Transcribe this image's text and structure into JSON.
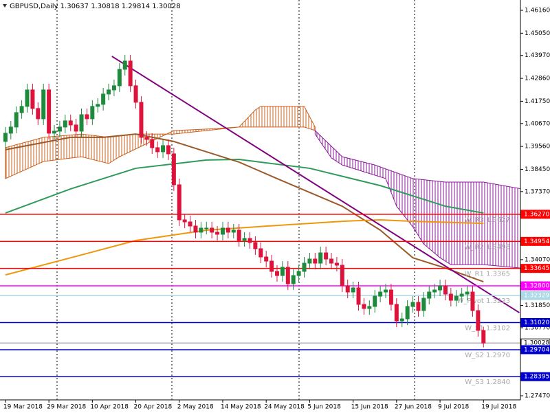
{
  "chart_data": {
    "type": "candlestick",
    "title": "GBPUSD,Daily  1.30637 1.30818 1.29814 1.30028",
    "xlim": [
      -1,
      94.8
    ],
    "ylim": [
      1.2727,
      1.4666
    ],
    "xticks": [
      {
        "value": 0,
        "label": "19 Mar 2018"
      },
      {
        "value": 8,
        "label": "29 Mar 2018"
      },
      {
        "value": 16,
        "label": "10 Apr 2018"
      },
      {
        "value": 24,
        "label": "20 Apr 2018"
      },
      {
        "value": 32,
        "label": "2 May 2018"
      },
      {
        "value": 40,
        "label": "14 May 2018"
      },
      {
        "value": 48,
        "label": "24 May 2018"
      },
      {
        "value": 56,
        "label": "5 Jun 2018"
      },
      {
        "value": 64,
        "label": "15 Jun 2018"
      },
      {
        "value": 72,
        "label": "27 Jun 2018"
      },
      {
        "value": 80,
        "label": "9 Jul 2018"
      },
      {
        "value": 88,
        "label": "19 Jul 2018"
      }
    ],
    "yticks": [
      {
        "value": 1.4616,
        "label": "1.46160"
      },
      {
        "value": 1.4505,
        "label": "1.45050"
      },
      {
        "value": 1.4397,
        "label": "1.43970"
      },
      {
        "value": 1.4286,
        "label": "1.42860"
      },
      {
        "value": 1.4175,
        "label": "1.41750"
      },
      {
        "value": 1.4067,
        "label": "1.40670"
      },
      {
        "value": 1.3956,
        "label": "1.39560"
      },
      {
        "value": 1.3845,
        "label": "1.38450"
      },
      {
        "value": 1.3737,
        "label": "1.37370"
      },
      {
        "value": 1.3407,
        "label": "1.34070"
      },
      {
        "value": 1.3185,
        "label": "1.31850"
      },
      {
        "value": 1.3077,
        "label": "1.30770"
      },
      {
        "value": 1.2747,
        "label": "1.27470"
      }
    ],
    "bull_color": "#1e8a3c",
    "bear_color": "#dc143c",
    "open": [
      1.398,
      1.402,
      1.405,
      1.412,
      1.415,
      1.423,
      1.414,
      1.409,
      1.423,
      1.402,
      1.403,
      1.405,
      1.408,
      1.406,
      1.403,
      1.411,
      1.409,
      1.415,
      1.416,
      1.421,
      1.423,
      1.425,
      1.433,
      1.437,
      1.425,
      1.417,
      1.4,
      1.399,
      1.395,
      1.393,
      1.396,
      1.392,
      1.377,
      1.36,
      1.359,
      1.357,
      1.354,
      1.356,
      1.356,
      1.354,
      1.353,
      1.356,
      1.354,
      1.355,
      1.35,
      1.351,
      1.349,
      1.346,
      1.342,
      1.34,
      1.335,
      1.333,
      1.337,
      1.329,
      1.333,
      1.335,
      1.339,
      1.341,
      1.339,
      1.344,
      1.341,
      1.339,
      1.338,
      1.328,
      1.325,
      1.327,
      1.319,
      1.317,
      1.318,
      1.323,
      1.325,
      1.326,
      1.319,
      1.311,
      1.312,
      1.318,
      1.32,
      1.316,
      1.322,
      1.325,
      1.326,
      1.328,
      1.324,
      1.321,
      1.323,
      1.324,
      1.325,
      1.316,
      1.30637
    ],
    "high": [
      1.405,
      1.408,
      1.415,
      1.418,
      1.426,
      1.426,
      1.417,
      1.426,
      1.426,
      1.406,
      1.408,
      1.411,
      1.411,
      1.409,
      1.414,
      1.414,
      1.418,
      1.419,
      1.424,
      1.426,
      1.428,
      1.436,
      1.44,
      1.44,
      1.428,
      1.42,
      1.403,
      1.402,
      1.398,
      1.399,
      1.399,
      1.395,
      1.38,
      1.363,
      1.362,
      1.36,
      1.359,
      1.359,
      1.359,
      1.357,
      1.359,
      1.359,
      1.358,
      1.358,
      1.354,
      1.354,
      1.352,
      1.349,
      1.345,
      1.343,
      1.338,
      1.34,
      1.34,
      1.336,
      1.338,
      1.342,
      1.344,
      1.344,
      1.347,
      1.347,
      1.344,
      1.342,
      1.341,
      1.331,
      1.33,
      1.33,
      1.322,
      1.321,
      1.326,
      1.328,
      1.329,
      1.329,
      1.322,
      1.315,
      1.321,
      1.323,
      1.323,
      1.325,
      1.328,
      1.329,
      1.331,
      1.331,
      1.327,
      1.326,
      1.327,
      1.328,
      1.328,
      1.319,
      1.30818
    ],
    "low": [
      1.395,
      1.399,
      1.402,
      1.409,
      1.412,
      1.411,
      1.406,
      1.406,
      1.399,
      1.399,
      1.4,
      1.402,
      1.403,
      1.4,
      1.4,
      1.406,
      1.406,
      1.412,
      1.413,
      1.418,
      1.42,
      1.422,
      1.43,
      1.422,
      1.414,
      1.397,
      1.396,
      1.392,
      1.39,
      1.39,
      1.389,
      1.374,
      1.357,
      1.356,
      1.354,
      1.351,
      1.351,
      1.353,
      1.351,
      1.35,
      1.35,
      1.351,
      1.351,
      1.347,
      1.347,
      1.346,
      1.343,
      1.339,
      1.337,
      1.332,
      1.33,
      1.33,
      1.326,
      1.326,
      1.33,
      1.332,
      1.336,
      1.336,
      1.336,
      1.338,
      1.336,
      1.335,
      1.325,
      1.322,
      1.322,
      1.316,
      1.314,
      1.314,
      1.315,
      1.32,
      1.322,
      1.316,
      1.308,
      1.308,
      1.309,
      1.315,
      1.313,
      1.313,
      1.319,
      1.322,
      1.323,
      1.321,
      1.318,
      1.318,
      1.32,
      1.321,
      1.313,
      1.3034,
      1.29814
    ],
    "close": [
      1.402,
      1.405,
      1.412,
      1.415,
      1.423,
      1.414,
      1.409,
      1.423,
      1.402,
      1.403,
      1.405,
      1.408,
      1.406,
      1.403,
      1.411,
      1.409,
      1.415,
      1.416,
      1.421,
      1.423,
      1.425,
      1.433,
      1.437,
      1.425,
      1.417,
      1.4,
      1.399,
      1.395,
      1.393,
      1.396,
      1.392,
      1.377,
      1.36,
      1.359,
      1.357,
      1.354,
      1.356,
      1.356,
      1.354,
      1.353,
      1.356,
      1.354,
      1.355,
      1.35,
      1.351,
      1.349,
      1.346,
      1.342,
      1.34,
      1.335,
      1.333,
      1.337,
      1.329,
      1.333,
      1.335,
      1.339,
      1.341,
      1.339,
      1.344,
      1.341,
      1.339,
      1.338,
      1.328,
      1.325,
      1.327,
      1.319,
      1.317,
      1.318,
      1.323,
      1.325,
      1.326,
      1.319,
      1.311,
      1.312,
      1.318,
      1.32,
      1.316,
      1.322,
      1.325,
      1.326,
      1.328,
      1.324,
      1.321,
      1.323,
      1.324,
      1.325,
      1.316,
      1.3064,
      1.30028
    ],
    "cloud": [
      {
        "color": "#c8601e",
        "upper": {
          "x": [
            0,
            7,
            14,
            19,
            24,
            31,
            37,
            43,
            46,
            47,
            55,
            57
          ],
          "values": [
            1.395,
            1.4,
            1.4016,
            1.4,
            1.4016,
            1.4016,
            1.4033,
            1.405,
            1.4133,
            1.415,
            1.415,
            1.405
          ]
        },
        "lower": {
          "x": [
            0,
            7,
            14,
            19,
            21,
            31,
            37,
            43,
            55,
            57
          ],
          "values": [
            1.38,
            1.3883,
            1.3906,
            1.3873,
            1.3906,
            1.4033,
            1.404,
            1.405,
            1.405,
            1.4033
          ]
        }
      },
      {
        "color": "#8b1a9b",
        "upper": {
          "x": [
            57,
            62,
            68,
            75,
            81,
            88,
            95
          ],
          "values": [
            1.4033,
            1.3906,
            1.3866,
            1.38,
            1.3783,
            1.3783,
            1.375
          ]
        },
        "lower": {
          "x": [
            57,
            60,
            62,
            70,
            72,
            75,
            77,
            80,
            82,
            88,
            95
          ],
          "values": [
            1.4016,
            1.39,
            1.3866,
            1.38,
            1.3666,
            1.3566,
            1.3483,
            1.3416,
            1.3383,
            1.3383,
            1.3366
          ]
        }
      }
    ],
    "lines": [
      {
        "color": "#2e9b5a",
        "x": [
          0,
          12,
          24,
          37,
          43,
          56,
          69,
          81,
          88
        ],
        "values": [
          1.3633,
          1.375,
          1.385,
          1.389,
          1.3893,
          1.385,
          1.3766,
          1.3666,
          1.3633
        ]
      },
      {
        "color": "#9c5a2a",
        "x": [
          0,
          12,
          18,
          24,
          31,
          37,
          43,
          50,
          56,
          62,
          69,
          75,
          81,
          88
        ],
        "values": [
          1.394,
          1.4,
          1.4,
          1.4016,
          1.398,
          1.393,
          1.388,
          1.38,
          1.3733,
          1.3666,
          1.355,
          1.3416,
          1.3366,
          1.33
        ]
      },
      {
        "color": "#f0960a",
        "x": [
          0,
          12,
          24,
          37,
          50,
          62,
          69,
          75,
          88
        ],
        "values": [
          1.3333,
          1.3416,
          1.35,
          1.355,
          1.3573,
          1.3593,
          1.36,
          1.3593,
          1.3583
        ]
      },
      {
        "color": "#800080",
        "x": [
          19.6,
          94.6
        ],
        "values": [
          1.4393,
          1.315
        ]
      }
    ],
    "levels": [
      {
        "value": 1.3627,
        "label": "1.36270",
        "color": "#ff0000",
        "text": "W_R3 1.3627"
      },
      {
        "value": 1.34954,
        "label": "1.34954",
        "color": "#ff0000",
        "text": "W_R2 1.3495"
      },
      {
        "value": 1.33645,
        "label": "1.33645",
        "color": "#ff0000",
        "text": "W_R1 1.3365"
      },
      {
        "value": 1.328,
        "label": "1.32800",
        "color": "#ff00ff"
      },
      {
        "value": 1.32329,
        "label": "1.32329",
        "color": "#add8e6",
        "text": "W_Pivot 1.3233"
      },
      {
        "value": 1.3102,
        "label": "1.31020",
        "color": "#0000cd",
        "text": "W_S1 1.3102"
      },
      {
        "value": 1.30028,
        "label": "1.30028",
        "color": "#b0b0b0",
        "label_fill": "#ffffff",
        "label_color": "#000000"
      },
      {
        "value": 1.29704,
        "label": "1.29704",
        "color": "#0000cd",
        "text": "W_S2 1.2970"
      },
      {
        "value": 1.28395,
        "label": "1.28395",
        "color": "#0000cd",
        "text": "W_S3 1.2840"
      }
    ]
  }
}
